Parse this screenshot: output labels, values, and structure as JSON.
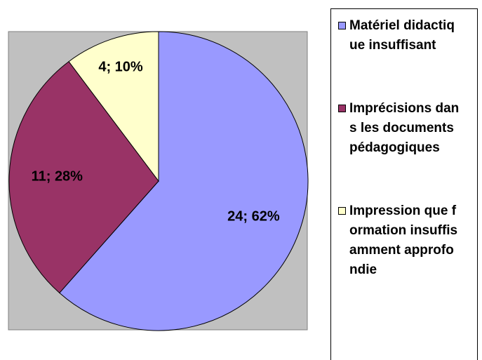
{
  "chart_data": {
    "type": "pie",
    "categories": [
      "Matériel didactique insuffisant",
      "Imprécisions dans les documents pédagogiques",
      "Impression que formation insuffisamment approfondie"
    ],
    "values": [
      24,
      11,
      4
    ],
    "value_labels": [
      "24; 62%",
      "11; 28%",
      "4; 10%"
    ],
    "colors": [
      "#9999ff",
      "#993366",
      "#ffffcc"
    ],
    "legend": "right"
  }
}
